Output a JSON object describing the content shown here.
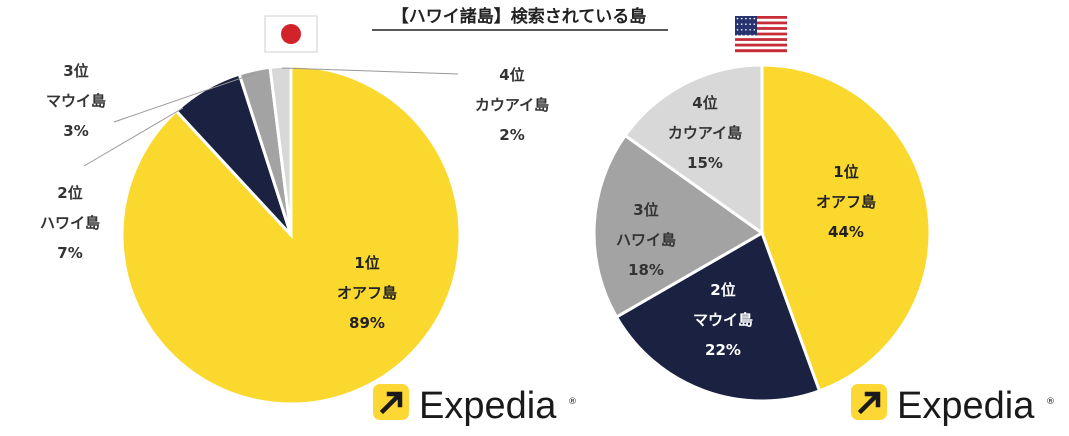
{
  "title": "【ハワイ諸島】検索されている島",
  "brand": {
    "name": "Expedia",
    "registered_mark": "®",
    "logo_color": "#fdd835",
    "logo_icon": "arrow-up-right-icon"
  },
  "chart_data": [
    {
      "type": "pie",
      "flag": "japan-flag-icon",
      "start_angle_deg": 0,
      "direction": "clockwise",
      "slices": [
        {
          "rank": "1位",
          "name": "オアフ島",
          "value": 89,
          "pct": "89%",
          "color": "#fbd82e"
        },
        {
          "rank": "2位",
          "name": "ハワイ島",
          "value": 7,
          "pct": "7%",
          "color": "#1b2140"
        },
        {
          "rank": "3位",
          "name": "マウイ島",
          "value": 3,
          "pct": "3%",
          "color": "#a3a3a3"
        },
        {
          "rank": "4位",
          "name": "カウアイ島",
          "value": 2,
          "pct": "2%",
          "color": "#d8d8d8"
        }
      ]
    },
    {
      "type": "pie",
      "flag": "usa-flag-icon",
      "start_angle_deg": 0,
      "direction": "clockwise",
      "slices": [
        {
          "rank": "1位",
          "name": "オアフ島",
          "value": 44,
          "pct": "44%",
          "color": "#fbd82e"
        },
        {
          "rank": "2位",
          "name": "マウイ島",
          "value": 22,
          "pct": "22%",
          "color": "#1b2140"
        },
        {
          "rank": "3位",
          "name": "ハワイ島",
          "value": 18,
          "pct": "18%",
          "color": "#a3a3a3"
        },
        {
          "rank": "4位",
          "name": "カウアイ島",
          "value": 15,
          "pct": "15%",
          "color": "#d8d8d8"
        }
      ]
    }
  ]
}
